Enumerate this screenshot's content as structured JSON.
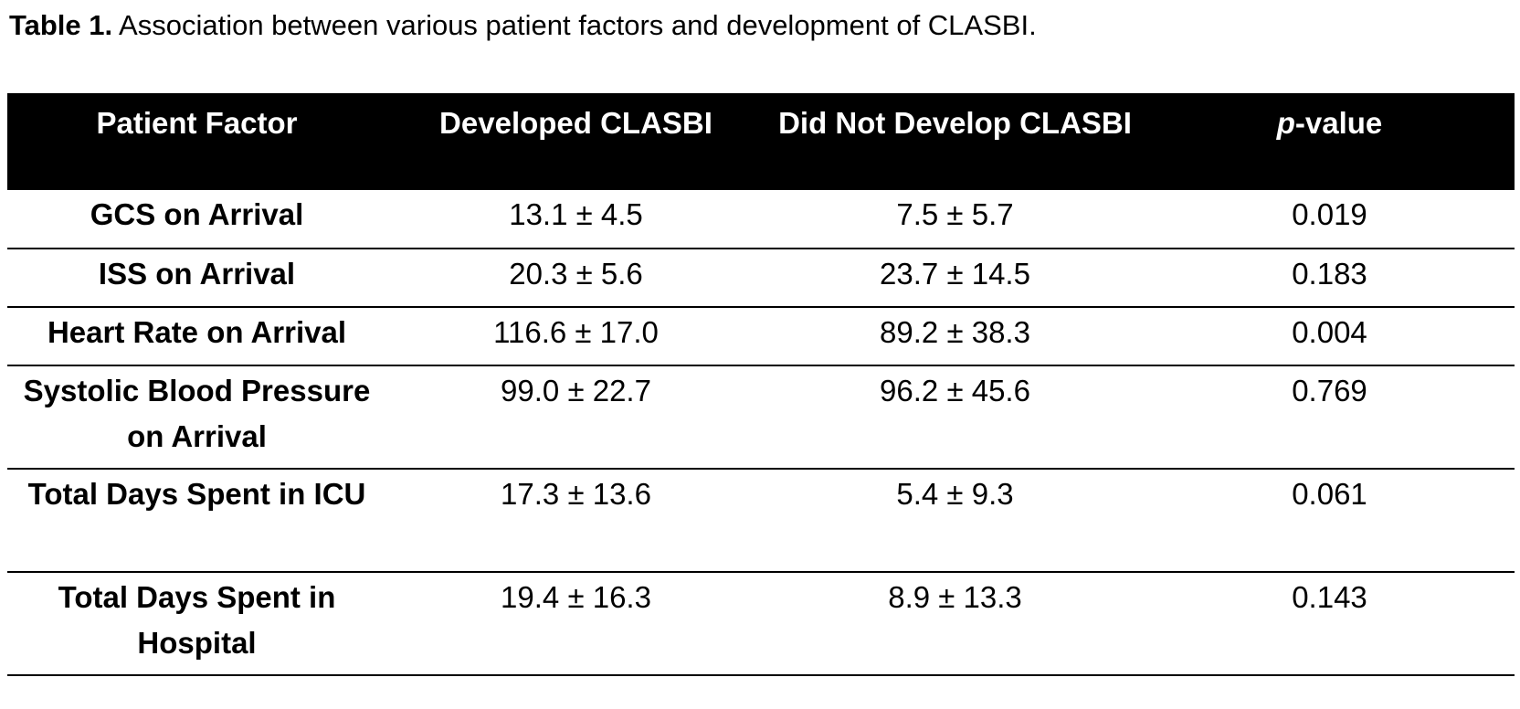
{
  "caption": {
    "label": "Table 1.",
    "text": " Association between various patient factors and development of CLASBI."
  },
  "table": {
    "headers": {
      "patient_factor": "Patient Factor",
      "developed": "Developed CLASBI",
      "did_not_develop": "Did Not Develop CLASBI",
      "p_value_italic": "p",
      "p_value_rest": "-value"
    },
    "rows": [
      {
        "factor": "GCS on Arrival",
        "developed": "13.1 ± 4.5",
        "did_not_develop": "7.5 ± 5.7",
        "p_value": "0.019"
      },
      {
        "factor": "ISS on Arrival",
        "developed": "20.3 ± 5.6",
        "did_not_develop": "23.7 ± 14.5",
        "p_value": "0.183"
      },
      {
        "factor": "Heart Rate on Arrival",
        "developed": "116.6 ± 17.0",
        "did_not_develop": "89.2 ± 38.3",
        "p_value": "0.004"
      },
      {
        "factor": "Systolic Blood Pressure on Arrival",
        "developed": "99.0 ± 22.7",
        "did_not_develop": "96.2 ± 45.6",
        "p_value": "0.769"
      },
      {
        "factor": "Total Days Spent in ICU",
        "developed": "17.3 ± 13.6",
        "did_not_develop": "5.4 ± 9.3",
        "p_value": "0.061"
      },
      {
        "factor": "Total Days Spent in Hospital",
        "developed": "19.4 ± 16.3",
        "did_not_develop": "8.9 ± 13.3",
        "p_value": "0.143"
      }
    ]
  },
  "colors": {
    "header_background": "#000000",
    "header_text": "#ffffff",
    "body_text": "#000000"
  }
}
